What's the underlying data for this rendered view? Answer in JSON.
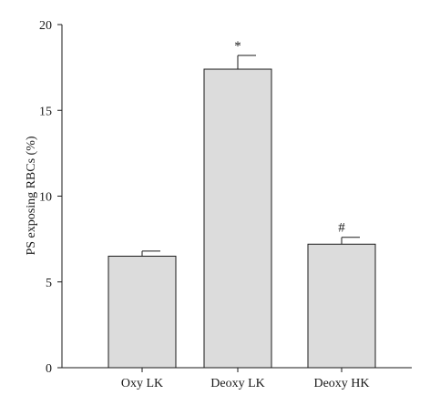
{
  "chart_data": {
    "type": "bar",
    "categories": [
      "Oxy LK",
      "Deoxy LK",
      "Deoxy HK"
    ],
    "values": [
      6.5,
      17.4,
      7.2
    ],
    "error_bars": [
      0.3,
      0.8,
      0.4
    ],
    "annotations": [
      "",
      "*",
      "#"
    ],
    "title": "",
    "xlabel": "",
    "ylabel": "PS exposing RBCs (%)",
    "ylim": [
      0,
      20
    ],
    "yticks": [
      0,
      5,
      10,
      15,
      20
    ],
    "grid": false,
    "legend": "none",
    "colors": {
      "bar_fill": "#dcdcdc",
      "bar_stroke": "#1a1a1a",
      "axis": "#1a1a1a"
    }
  }
}
